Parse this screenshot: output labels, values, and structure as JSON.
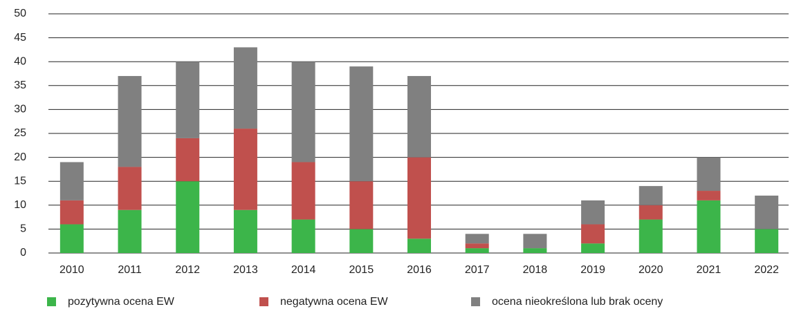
{
  "chart_data": {
    "type": "stacked_bar",
    "categories": [
      "2010",
      "2011",
      "2012",
      "2013",
      "2014",
      "2015",
      "2016",
      "2017",
      "2018",
      "2019",
      "2020",
      "2021",
      "2022"
    ],
    "series": [
      {
        "name": "pozytywna ocena EW",
        "color": "#3cb54a",
        "values": [
          6,
          9,
          15,
          9,
          7,
          5,
          3,
          1,
          1,
          2,
          7,
          11,
          5
        ]
      },
      {
        "name": "negatywna ocena EW",
        "color": "#c0504d",
        "values": [
          5,
          9,
          9,
          17,
          12,
          10,
          17,
          1,
          0,
          4,
          3,
          2,
          0
        ]
      },
      {
        "name": "ocena nieokreślona lub brak oceny",
        "color": "#808080",
        "values": [
          8,
          19,
          16,
          17,
          21,
          24,
          17,
          2,
          3,
          5,
          4,
          7,
          7
        ]
      }
    ],
    "ylim": [
      0,
      50
    ],
    "yticks": [
      0,
      5,
      10,
      15,
      20,
      25,
      30,
      35,
      40,
      45,
      50
    ],
    "grid": true,
    "legend": "bottom"
  }
}
